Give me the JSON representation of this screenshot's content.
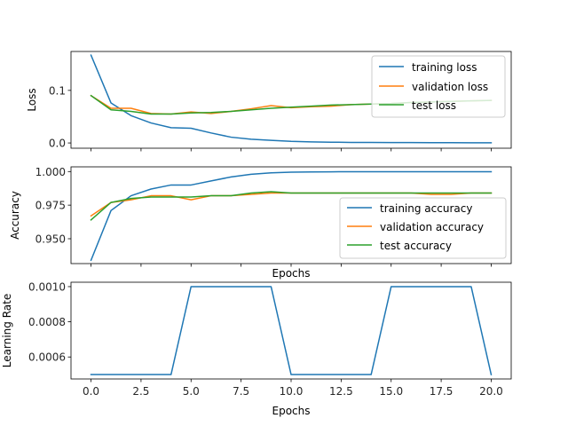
{
  "colors": {
    "training": "#1f77b4",
    "validation": "#ff7f0e",
    "test": "#2ca02c",
    "axis": "#000000"
  },
  "chart_data": [
    {
      "type": "line",
      "xlabel": "",
      "ylabel": "Loss",
      "xlim": [
        -1.0,
        21.0
      ],
      "ylim": [
        -0.01,
        0.174
      ],
      "yticks": [
        0.0,
        0.1
      ],
      "ytick_labels": [
        "0.0",
        "0.1"
      ],
      "xticks": [
        0,
        2.5,
        5,
        7.5,
        10,
        12.5,
        15,
        17.5,
        20
      ],
      "xtick_labels": [],
      "legend": {
        "placement": "top-right",
        "entries": [
          "training loss",
          "validation loss",
          "test loss"
        ]
      },
      "series": [
        {
          "name": "training loss",
          "color_key": "training",
          "x": [
            0,
            1,
            2,
            3,
            4,
            5,
            6,
            7,
            8,
            9,
            10,
            11,
            12,
            13,
            14,
            15,
            16,
            17,
            18,
            19,
            20
          ],
          "y": [
            0.167,
            0.076,
            0.052,
            0.038,
            0.029,
            0.028,
            0.019,
            0.011,
            0.007,
            0.005,
            0.003,
            0.002,
            0.0015,
            0.001,
            0.001,
            0.0008,
            0.0007,
            0.0006,
            0.0005,
            0.0004,
            0.0003
          ]
        },
        {
          "name": "validation loss",
          "color_key": "validation",
          "x": [
            0,
            1,
            2,
            3,
            4,
            5,
            6,
            7,
            8,
            9,
            10,
            11,
            12,
            13,
            14,
            15,
            16,
            17,
            18,
            19,
            20
          ],
          "y": [
            0.09,
            0.066,
            0.066,
            0.056,
            0.055,
            0.059,
            0.056,
            0.06,
            0.065,
            0.071,
            0.067,
            0.069,
            0.07,
            0.073,
            0.074,
            0.075,
            0.077,
            0.078,
            0.079,
            0.08,
            0.081
          ]
        },
        {
          "name": "test loss",
          "color_key": "test",
          "x": [
            0,
            1,
            2,
            3,
            4,
            5,
            6,
            7,
            8,
            9,
            10,
            11,
            12,
            13,
            14,
            15,
            16,
            17,
            18,
            19,
            20
          ],
          "y": [
            0.09,
            0.063,
            0.06,
            0.055,
            0.055,
            0.057,
            0.058,
            0.06,
            0.063,
            0.066,
            0.068,
            0.07,
            0.072,
            0.073,
            0.074,
            0.075,
            0.077,
            0.078,
            0.079,
            0.08,
            0.081
          ]
        }
      ]
    },
    {
      "type": "line",
      "xlabel": "Epochs",
      "ylabel": "Accuracy",
      "xlim": [
        -1.0,
        21.0
      ],
      "ylim": [
        0.9315,
        1.0035
      ],
      "yticks": [
        0.95,
        0.975,
        1.0
      ],
      "ytick_labels": [
        "0.950",
        "0.975",
        "1.000"
      ],
      "xticks": [
        0,
        2.5,
        5,
        7.5,
        10,
        12.5,
        15,
        17.5,
        20
      ],
      "xtick_labels": [],
      "legend": {
        "placement": "bottom-right",
        "entries": [
          "training accuracy",
          "validation accuracy",
          "test accuracy"
        ]
      },
      "series": [
        {
          "name": "training accuracy",
          "color_key": "training",
          "x": [
            0,
            1,
            2,
            3,
            4,
            5,
            6,
            7,
            8,
            9,
            10,
            11,
            12,
            13,
            14,
            15,
            16,
            17,
            18,
            19,
            20
          ],
          "y": [
            0.934,
            0.971,
            0.982,
            0.987,
            0.99,
            0.99,
            0.993,
            0.996,
            0.998,
            0.999,
            0.9995,
            0.9997,
            0.9998,
            0.9999,
            0.9999,
            0.9999,
            0.9999,
            0.9999,
            0.9999,
            0.9999,
            0.9999
          ]
        },
        {
          "name": "validation accuracy",
          "color_key": "validation",
          "x": [
            0,
            1,
            2,
            3,
            4,
            5,
            6,
            7,
            8,
            9,
            10,
            11,
            12,
            13,
            14,
            15,
            16,
            17,
            18,
            19,
            20
          ],
          "y": [
            0.967,
            0.977,
            0.979,
            0.982,
            0.982,
            0.979,
            0.982,
            0.982,
            0.983,
            0.984,
            0.984,
            0.984,
            0.984,
            0.984,
            0.984,
            0.984,
            0.984,
            0.983,
            0.983,
            0.984,
            0.984
          ]
        },
        {
          "name": "test accuracy",
          "color_key": "test",
          "x": [
            0,
            1,
            2,
            3,
            4,
            5,
            6,
            7,
            8,
            9,
            10,
            11,
            12,
            13,
            14,
            15,
            16,
            17,
            18,
            19,
            20
          ],
          "y": [
            0.964,
            0.977,
            0.98,
            0.981,
            0.981,
            0.981,
            0.982,
            0.982,
            0.984,
            0.985,
            0.984,
            0.984,
            0.984,
            0.984,
            0.984,
            0.984,
            0.984,
            0.984,
            0.984,
            0.984,
            0.984
          ]
        }
      ]
    },
    {
      "type": "line",
      "xlabel": "Epochs",
      "ylabel": "Learning Rate",
      "xlim": [
        -1.0,
        21.0
      ],
      "ylim": [
        0.000475,
        0.001025
      ],
      "yticks": [
        0.0006,
        0.0008,
        0.001
      ],
      "ytick_labels": [
        "0.0006",
        "0.0008",
        "0.0010"
      ],
      "xticks": [
        0,
        2.5,
        5,
        7.5,
        10,
        12.5,
        15,
        17.5,
        20
      ],
      "xtick_labels": [
        "0.0",
        "2.5",
        "5.0",
        "7.5",
        "10.0",
        "12.5",
        "15.0",
        "17.5",
        "20.0"
      ],
      "series": [
        {
          "name": "",
          "color_key": "training",
          "x": [
            0,
            1,
            2,
            3,
            4,
            5,
            6,
            7,
            8,
            9,
            10,
            11,
            12,
            13,
            14,
            15,
            16,
            17,
            18,
            19,
            20
          ],
          "y": [
            0.0005,
            0.0005,
            0.0005,
            0.0005,
            0.0005,
            0.001,
            0.001,
            0.001,
            0.001,
            0.001,
            0.0005,
            0.0005,
            0.0005,
            0.0005,
            0.0005,
            0.001,
            0.001,
            0.001,
            0.001,
            0.001,
            0.0005
          ]
        }
      ]
    }
  ]
}
